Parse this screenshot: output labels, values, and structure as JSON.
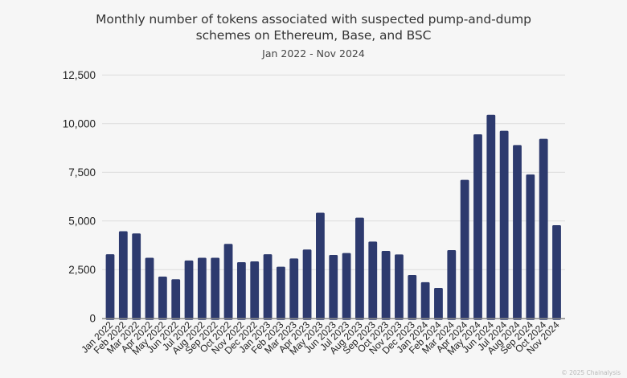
{
  "chart_data": {
    "type": "bar",
    "title": "Monthly number of tokens associated with suspected pump-and-dump schemes on Ethereum, Base, and BSC",
    "title_lines": [
      "Monthly number of tokens associated with suspected pump-and-dump",
      "schemes on Ethereum, Base, and BSC"
    ],
    "subtitle": "Jan 2022 - Nov 2024",
    "xlabel": "",
    "ylabel": "",
    "ylim": [
      0,
      12500
    ],
    "yticks": [
      0,
      2500,
      5000,
      7500,
      10000,
      12500
    ],
    "ytick_labels": [
      "0",
      "2,500",
      "5,000",
      "7,500",
      "10,000",
      "12,500"
    ],
    "grid": true,
    "legend": "none",
    "bar_color": "#2d3a6e",
    "categories": [
      "Jan 2022",
      "Feb 2022",
      "Mar 2022",
      "Apr 2022",
      "May 2022",
      "Jun 2022",
      "Jul 2022",
      "Aug 2022",
      "Sep 2022",
      "Oct 2022",
      "Nov 2022",
      "Dec 2022",
      "Jan 2023",
      "Feb 2023",
      "Mar 2023",
      "Apr 2023",
      "May 2023",
      "Jun 2023",
      "Jul 2023",
      "Aug 2023",
      "Sep 2023",
      "Oct 2023",
      "Nov 2023",
      "Dec 2023",
      "Jan 2024",
      "Feb 2024",
      "Mar 2024",
      "Apr 2024",
      "May 2024",
      "Jun 2024",
      "Jul 2024",
      "Aug 2024",
      "Sep 2024",
      "Oct 2024",
      "Nov 2024"
    ],
    "values": [
      3290,
      4470,
      4360,
      3110,
      2140,
      2000,
      2970,
      3110,
      3110,
      3820,
      2880,
      2920,
      3290,
      2650,
      3070,
      3530,
      5420,
      3250,
      3350,
      5170,
      3940,
      3460,
      3280,
      2220,
      1850,
      1560,
      3500,
      7110,
      9450,
      10450,
      9630,
      8900,
      7390,
      9220,
      4780
    ]
  },
  "credit": "© 2025 Chainalysis"
}
